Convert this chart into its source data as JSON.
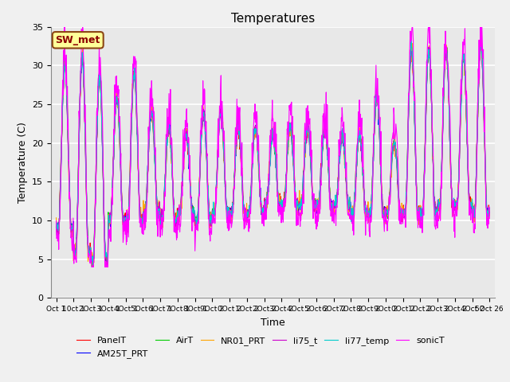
{
  "title": "Temperatures",
  "xlabel": "Time",
  "ylabel": "Temperature (C)",
  "ylim": [
    0,
    35
  ],
  "annotation_text": "SW_met",
  "annotation_box_facecolor": "#FFFF99",
  "annotation_box_edgecolor": "#8B4513",
  "series_colors": {
    "PanelT": "#FF0000",
    "AM25T_PRT": "#0000FF",
    "AirT": "#00CC00",
    "NR01_PRT": "#FFA500",
    "li75_t": "#CC00CC",
    "li77_temp": "#00CCCC",
    "sonicT": "#FF00FF"
  },
  "fig_facecolor": "#F0F0F0",
  "plot_bg_color": "#E8E8E8",
  "grid_color": "#FFFFFF",
  "title_fontsize": 11,
  "axis_fontsize": 9,
  "tick_fontsize": 8,
  "xtick_labels": [
    "Oct 1",
    "10ct 1",
    "2Oct 1",
    "3Oct 1",
    "4Oct 1",
    "5Oct 1",
    "6Oct 1",
    "7Oct 1",
    "8Oct 1",
    "9Oct 2",
    "0Oct 2",
    "1Oct 2",
    "2Oct 2",
    "3Oct 2",
    "4Oct 2",
    "5Oct 2",
    "6Oct 2",
    "7Oct 2",
    "8Oct 2",
    "9Oct 2",
    "0Oct 2",
    "1Oct 2",
    "2Oct 2",
    "3Oct 2",
    "4Oct 2",
    "5Oct 26"
  ],
  "mins_by_day": [
    9,
    6,
    5,
    10,
    10,
    11,
    10,
    11,
    10,
    11,
    11,
    11,
    12,
    12,
    12,
    12,
    12,
    11,
    11,
    11,
    11,
    11,
    12,
    12,
    11
  ],
  "maxs_by_day": [
    30,
    31,
    28.5,
    26,
    29,
    24,
    22,
    21,
    24,
    24,
    22,
    22,
    21,
    22,
    22,
    22,
    21,
    21,
    26,
    20,
    32,
    32,
    32,
    31,
    33
  ]
}
